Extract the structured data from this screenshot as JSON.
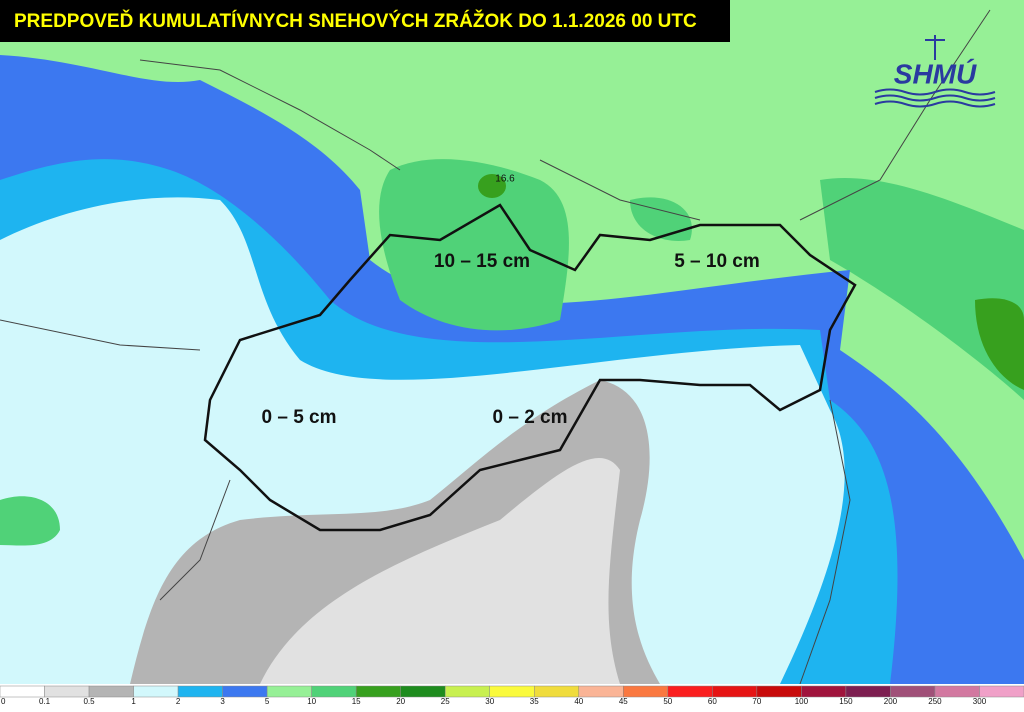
{
  "header": {
    "title": "PREDPOVEĎ KUMULATÍVNYCH SNEHOVÝCH ZRÁŽOK DO 1.1.2026 00 UTC",
    "logo": "SHMÚ"
  },
  "map": {
    "labels": [
      "10 – 15 cm",
      "5 – 10 cm",
      "0 – 5 cm",
      "0 – 2 cm"
    ],
    "max_value": 16.6
  },
  "legend": {
    "ticks": [
      0,
      0.1,
      0.5,
      1,
      2,
      3,
      5,
      10,
      15,
      20,
      25,
      30,
      35,
      40,
      45,
      50,
      60,
      70,
      100,
      150,
      200,
      250,
      300
    ],
    "colors": [
      "#ffffff",
      "#e1e1e1",
      "#b4b4b4",
      "#d2f8fc",
      "#1eb4f0",
      "#3c78f0",
      "#96f096",
      "#50d278",
      "#37a01e",
      "#1e8c1e",
      "#c8f050",
      "#fafa3c",
      "#f0dc3c",
      "#fab496",
      "#fa7840",
      "#fa1e1e",
      "#e61414",
      "#c80a0a",
      "#a0143c",
      "#7d1e50",
      "#a05078",
      "#d278a0",
      "#f0a0c8"
    ]
  }
}
